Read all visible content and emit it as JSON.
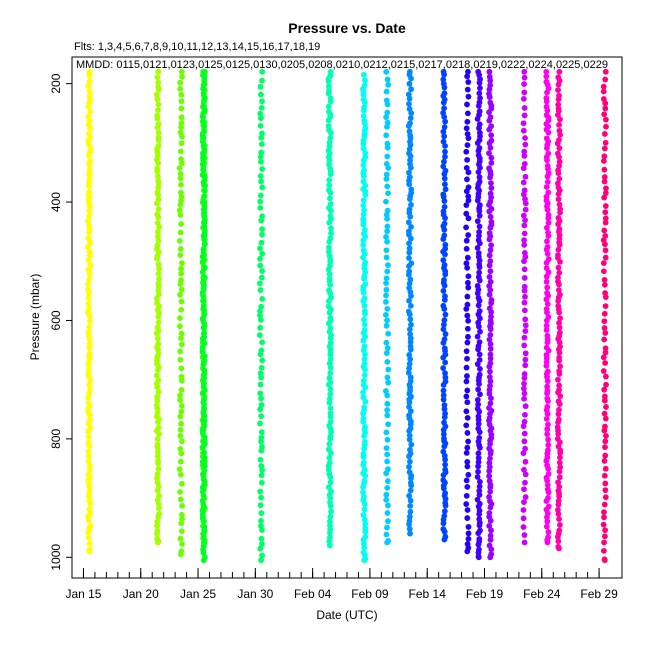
{
  "chart_data": {
    "type": "scatter",
    "title": "Pressure  vs. Date",
    "subtitle": "Flts: 1,3,4,5,6,7,8,9,10,11,12,13,14,15,16,17,18,19",
    "annotation": "MMDD: 0115,0121,0123,0125,0125,0130,0205,0208,0210,0212,0215,0217,0218,0219,0222,0224,0225,0229",
    "xlabel": "Date (UTC)",
    "ylabel": "Pressure (mbar)",
    "x_range": [
      "2020-01-14",
      "2020-03-02"
    ],
    "ylim": [
      1035,
      155
    ],
    "y_reversed": true,
    "x_tick_labels": [
      "Jan 15",
      "Jan 20",
      "Jan 25",
      "Jan 30",
      "Feb 04",
      "Feb 09",
      "Feb 14",
      "Feb 19",
      "Feb 24",
      "Feb 29"
    ],
    "x_tick_dates": [
      "2020-01-15",
      "2020-01-20",
      "2020-01-25",
      "2020-01-30",
      "2020-02-04",
      "2020-02-09",
      "2020-02-14",
      "2020-02-19",
      "2020-02-24",
      "2020-02-29"
    ],
    "x_minor_tick_dates": [
      "2020-01-15",
      "2020-01-16",
      "2020-01-17",
      "2020-01-18",
      "2020-01-19",
      "2020-01-20",
      "2020-01-21",
      "2020-01-22",
      "2020-01-23",
      "2020-01-24",
      "2020-01-25",
      "2020-01-26",
      "2020-01-27",
      "2020-01-28",
      "2020-01-29",
      "2020-01-30",
      "2020-01-31",
      "2020-02-01",
      "2020-02-02",
      "2020-02-03",
      "2020-02-04",
      "2020-02-05",
      "2020-02-06",
      "2020-02-07",
      "2020-02-08",
      "2020-02-09",
      "2020-02-10",
      "2020-02-11",
      "2020-02-12",
      "2020-02-13",
      "2020-02-14",
      "2020-02-15",
      "2020-02-16",
      "2020-02-17",
      "2020-02-18",
      "2020-02-19",
      "2020-02-20",
      "2020-02-21",
      "2020-02-22",
      "2020-02-23",
      "2020-02-24",
      "2020-02-25",
      "2020-02-26",
      "2020-02-27",
      "2020-02-28",
      "2020-02-29"
    ],
    "y_ticks": [
      200,
      400,
      600,
      800,
      1000
    ],
    "y_tick_labels": [
      "200",
      "400",
      "600",
      "800",
      "1000"
    ],
    "grid": false,
    "legend": "none",
    "series": [
      {
        "date": "2020-01-15",
        "color": "#FFFF00",
        "p_min": 180,
        "p_max": 990
      },
      {
        "date": "2020-01-21",
        "color": "#A6FF00",
        "p_min": 180,
        "p_max": 975
      },
      {
        "date": "2020-01-23",
        "color": "#6CFF00",
        "p_min": 180,
        "p_max": 995
      },
      {
        "date": "2020-01-25",
        "color": "#33FF00",
        "p_min": 180,
        "p_max": 975
      },
      {
        "date": "2020-01-25",
        "color": "#00FF22",
        "p_min": 180,
        "p_max": 1005
      },
      {
        "date": "2020-01-30",
        "color": "#00FF66",
        "p_min": 180,
        "p_max": 1005
      },
      {
        "date": "2020-02-05",
        "color": "#00FFB3",
        "p_min": 180,
        "p_max": 980
      },
      {
        "date": "2020-02-08",
        "color": "#00FFEE",
        "p_min": 185,
        "p_max": 1005
      },
      {
        "date": "2020-02-10",
        "color": "#00CCFF",
        "p_min": 180,
        "p_max": 975
      },
      {
        "date": "2020-02-12",
        "color": "#0088FF",
        "p_min": 180,
        "p_max": 960
      },
      {
        "date": "2020-02-15",
        "color": "#0044FF",
        "p_min": 180,
        "p_max": 970
      },
      {
        "date": "2020-02-17",
        "color": "#2200FF",
        "p_min": 180,
        "p_max": 990
      },
      {
        "date": "2020-02-18",
        "color": "#4400FF",
        "p_min": 180,
        "p_max": 1000
      },
      {
        "date": "2020-02-19",
        "color": "#9900FF",
        "p_min": 180,
        "p_max": 1000
      },
      {
        "date": "2020-02-22",
        "color": "#CC00FF",
        "p_min": 180,
        "p_max": 975
      },
      {
        "date": "2020-02-24",
        "color": "#FF00EE",
        "p_min": 180,
        "p_max": 975
      },
      {
        "date": "2020-02-25",
        "color": "#FF00AA",
        "p_min": 180,
        "p_max": 985
      },
      {
        "date": "2020-02-29",
        "color": "#FF0077",
        "p_min": 180,
        "p_max": 1005
      }
    ]
  }
}
